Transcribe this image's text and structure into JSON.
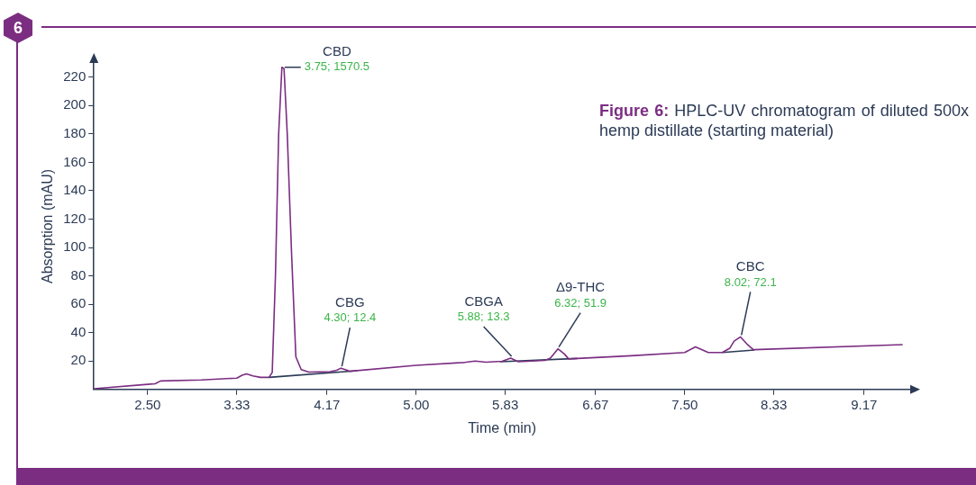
{
  "chart_data": {
    "type": "line",
    "title": "Figure 6:",
    "subtitle": "HPLC-UV chromatogram of diluted 500x hemp distillate (starting material)",
    "xlabel": "Time (min)",
    "ylabel": "Absorption (mAU)",
    "xlim": [
      2.0,
      9.6
    ],
    "xticks": [
      {
        "value": 2.5,
        "label": "2.50"
      },
      3.33,
      4.17,
      {
        "value": 5.0,
        "label": "5.00"
      },
      5.83,
      6.67,
      {
        "value": 7.5,
        "label": "7.50"
      },
      8.33,
      9.17
    ],
    "ylim": [
      0,
      230
    ],
    "yticks": [
      20,
      40,
      60,
      80,
      100,
      120,
      140,
      160,
      180,
      200,
      220
    ],
    "grid": false,
    "legend": false,
    "marker": "none",
    "line_style": "solid",
    "series": [
      {
        "color": "#7b2d82",
        "x": [
          2.0,
          2.5,
          2.57,
          2.62,
          3.0,
          3.33,
          3.38,
          3.42,
          3.48,
          3.55,
          3.63,
          3.66,
          3.69,
          3.72,
          3.75,
          3.77,
          3.8,
          3.84,
          3.88,
          3.93,
          4.0,
          4.2,
          4.26,
          4.3,
          4.34,
          4.38,
          5.0,
          5.45,
          5.55,
          5.65,
          5.8,
          5.88,
          5.95,
          6.2,
          6.25,
          6.32,
          6.38,
          6.42,
          7.0,
          7.5,
          7.6,
          7.72,
          7.85,
          7.92,
          7.96,
          8.02,
          8.08,
          8.14,
          9.53
        ],
        "values": [
          0.5,
          3.6,
          4,
          6,
          6.7,
          8,
          10,
          11,
          9.5,
          8.5,
          8.5,
          12,
          80,
          180,
          227,
          226,
          180,
          96,
          23,
          14,
          12.2,
          12.6,
          13.5,
          15,
          14,
          12.8,
          17,
          19,
          20,
          19.2,
          19.8,
          22,
          19.5,
          20.5,
          22,
          28.6,
          25,
          21.5,
          23.7,
          26,
          30,
          26,
          26,
          29,
          34,
          37,
          32,
          28,
          31.6
        ]
      },
      {
        "color": "#2b3a55",
        "x": [
          3.63,
          4.45,
          5.0,
          5.78,
          6.5,
          7.0,
          7.85,
          8.15
        ],
        "values": [
          8.5,
          13.2,
          null,
          19.5,
          21.8,
          null,
          26,
          27.8
        ]
      }
    ],
    "annotations": [
      "6",
      "CBD",
      {
        "text": "3.75; 1570.5",
        "x": 3.75,
        "y": 227
      },
      "CBG",
      {
        "text": "4.30; 12.4",
        "x": 4.3,
        "y": 15
      },
      "CBGA",
      {
        "text": "5.88; 13.3",
        "x": 5.88,
        "y": 22
      },
      "Δ9-THC",
      {
        "text": "6.32; 51.9",
        "x": 6.32,
        "y": 28.6
      },
      "CBC",
      {
        "text": "8.02; 72.1",
        "x": 8.02,
        "y": 37
      }
    ]
  }
}
